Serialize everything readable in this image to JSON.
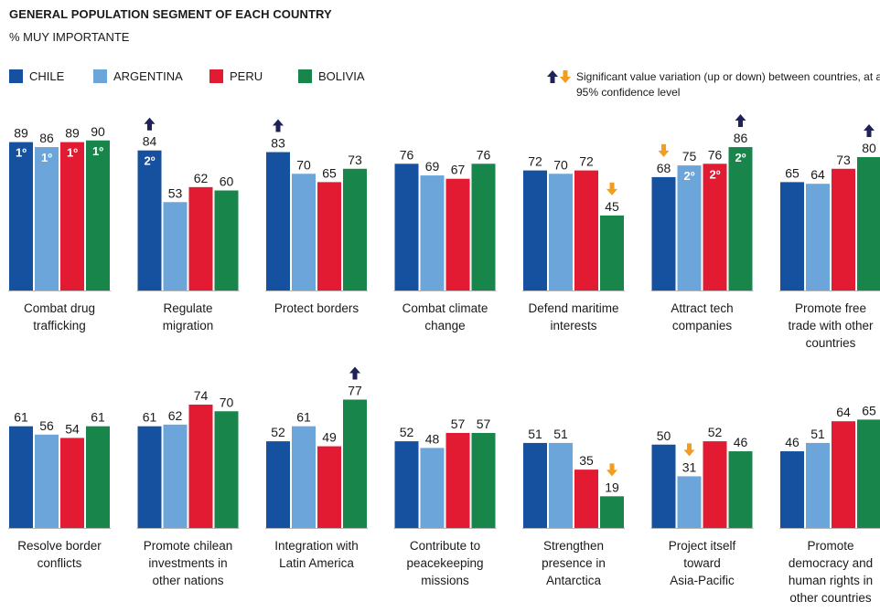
{
  "title": "GENERAL POPULATION SEGMENT OF EACH COUNTRY",
  "subtitle": "% MUY IMPORTANTE",
  "legend": [
    "CHILE",
    "ARGENTINA",
    "PERU",
    "BOLIVIA"
  ],
  "note": "Significant value variation (up or down) between countries, at a 95% confidence level",
  "colors": {
    "CHILE": "#15519e",
    "ARGENTINA": "#6ba5da",
    "PERU": "#e21a32",
    "BOLIVIA": "#18864b",
    "arrow_up": "#1f2258",
    "arrow_down": "#f39c1e",
    "axis": "#b5b5b5"
  },
  "chart_data": {
    "type": "bar",
    "ylim": [
      0,
      100
    ],
    "grid": false,
    "legend_position": "top-left",
    "series_names": [
      "CHILE",
      "ARGENTINA",
      "PERU",
      "BOLIVIA"
    ],
    "panels": [
      {
        "label": [
          "Combat drug",
          "trafficking"
        ],
        "values": [
          89,
          86,
          89,
          90
        ],
        "ranks": [
          "1º",
          "1º",
          "1º",
          "1º"
        ],
        "arrows": [
          null,
          null,
          null,
          null
        ]
      },
      {
        "label": [
          "Regulate",
          "migration"
        ],
        "values": [
          84,
          53,
          62,
          60
        ],
        "ranks": [
          "2º",
          null,
          null,
          null
        ],
        "arrows": [
          "up",
          null,
          null,
          null
        ]
      },
      {
        "label": [
          "Protect borders"
        ],
        "values": [
          83,
          70,
          65,
          73
        ],
        "ranks": [
          null,
          null,
          null,
          null
        ],
        "arrows": [
          "up",
          null,
          null,
          null
        ]
      },
      {
        "label": [
          "Combat climate",
          "change"
        ],
        "values": [
          76,
          69,
          67,
          76
        ],
        "ranks": [
          null,
          null,
          null,
          null
        ],
        "arrows": [
          null,
          null,
          null,
          null
        ]
      },
      {
        "label": [
          "Defend maritime",
          "interests"
        ],
        "values": [
          72,
          70,
          72,
          45
        ],
        "ranks": [
          null,
          null,
          null,
          null
        ],
        "arrows": [
          null,
          null,
          null,
          "down"
        ]
      },
      {
        "label": [
          "Attract tech",
          "companies"
        ],
        "values": [
          68,
          75,
          76,
          86
        ],
        "ranks": [
          null,
          "2º",
          "2º",
          "2º"
        ],
        "arrows": [
          "down",
          null,
          null,
          "up"
        ]
      },
      {
        "label": [
          "Promote free",
          "trade with other",
          "countries"
        ],
        "values": [
          65,
          64,
          73,
          80
        ],
        "ranks": [
          null,
          null,
          null,
          null
        ],
        "arrows": [
          null,
          null,
          null,
          "up"
        ]
      },
      {
        "label": [
          "Resolve border",
          "conflicts"
        ],
        "values": [
          61,
          56,
          54,
          61
        ],
        "ranks": [
          null,
          null,
          null,
          null
        ],
        "arrows": [
          null,
          null,
          null,
          null
        ]
      },
      {
        "label": [
          "Promote chilean",
          "investments in",
          "other nations"
        ],
        "values": [
          61,
          62,
          74,
          70
        ],
        "ranks": [
          null,
          null,
          null,
          null
        ],
        "arrows": [
          null,
          null,
          null,
          null
        ]
      },
      {
        "label": [
          "Integration with",
          "Latin America"
        ],
        "values": [
          52,
          61,
          49,
          77
        ],
        "ranks": [
          null,
          null,
          null,
          null
        ],
        "arrows": [
          null,
          null,
          null,
          "up"
        ]
      },
      {
        "label": [
          "Contribute to",
          "peacekeeping",
          "missions"
        ],
        "values": [
          52,
          48,
          57,
          57
        ],
        "ranks": [
          null,
          null,
          null,
          null
        ],
        "arrows": [
          null,
          null,
          null,
          null
        ]
      },
      {
        "label": [
          "Strengthen",
          "presence in",
          "Antarctica"
        ],
        "values": [
          51,
          51,
          35,
          19
        ],
        "ranks": [
          null,
          null,
          null,
          null
        ],
        "arrows": [
          null,
          null,
          null,
          "down"
        ]
      },
      {
        "label": [
          "Project itself",
          "toward",
          "Asia-Pacific"
        ],
        "values": [
          50,
          31,
          52,
          46
        ],
        "ranks": [
          null,
          null,
          null,
          null
        ],
        "arrows": [
          null,
          "down",
          null,
          null
        ]
      },
      {
        "label": [
          "Promote",
          "democracy and",
          "human rights in",
          "other countries"
        ],
        "values": [
          46,
          51,
          64,
          65
        ],
        "ranks": [
          null,
          null,
          null,
          null
        ],
        "arrows": [
          null,
          null,
          null,
          null
        ]
      }
    ]
  }
}
